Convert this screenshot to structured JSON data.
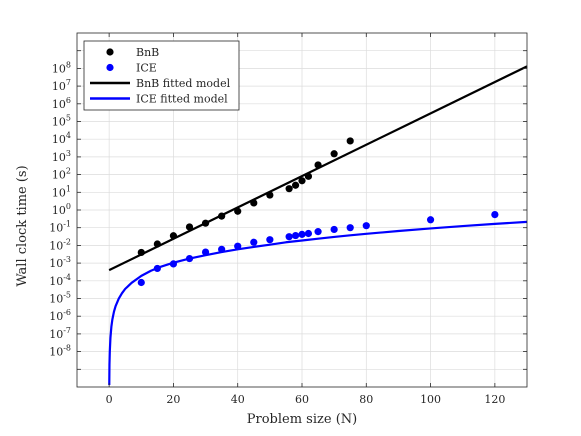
{
  "chart_data": {
    "type": "scatter",
    "title": "",
    "xlabel": "Problem size (N)",
    "ylabel": "Wall clock time (s)",
    "xscale": "linear",
    "yscale": "log",
    "xlim": [
      -10,
      130
    ],
    "ylim": [
      1e-10,
      10000000000.0
    ],
    "grid": true,
    "legend_position": "top-left",
    "x_tick_values": [
      0,
      20,
      40,
      60,
      80,
      100,
      120
    ],
    "x_tick_labels": [
      "0",
      "20",
      "40",
      "60",
      "80",
      "100",
      "120"
    ],
    "y_tick_labels": [
      {
        "base": "10",
        "exp": "8",
        "value": 100000000.0
      },
      {
        "base": "10",
        "exp": "7",
        "value": 10000000.0
      },
      {
        "base": "10",
        "exp": "6",
        "value": 1000000.0
      },
      {
        "base": "10",
        "exp": "5",
        "value": 100000.0
      },
      {
        "base": "10",
        "exp": "4",
        "value": 10000.0
      },
      {
        "base": "10",
        "exp": "3",
        "value": 1000.0
      },
      {
        "base": "10",
        "exp": "2",
        "value": 100.0
      },
      {
        "base": "10",
        "exp": "1",
        "value": 10.0
      },
      {
        "base": "10",
        "exp": "0",
        "value": 1.0
      },
      {
        "base": "10",
        "exp": "-1",
        "value": 0.1
      },
      {
        "base": "10",
        "exp": "-2",
        "value": 0.01
      },
      {
        "base": "10",
        "exp": "-3",
        "value": 0.001
      },
      {
        "base": "10",
        "exp": "-4",
        "value": 0.0001
      },
      {
        "base": "10",
        "exp": "-5",
        "value": 1e-05
      },
      {
        "base": "10",
        "exp": "-6",
        "value": 1e-06
      },
      {
        "base": "10",
        "exp": "-7",
        "value": 1e-07
      },
      {
        "base": "10",
        "exp": "-8",
        "value": 1e-08
      }
    ],
    "series": [
      {
        "name": "BnB",
        "kind": "scatter",
        "color": "#000000",
        "x": [
          10,
          15,
          20,
          25,
          30,
          35,
          40,
          45,
          50,
          56,
          58,
          60,
          62,
          65,
          70,
          75
        ],
        "y": [
          0.004,
          0.012,
          0.035,
          0.11,
          0.18,
          0.45,
          0.85,
          2.5,
          7,
          16,
          25,
          45,
          80,
          350,
          1500,
          8000
        ]
      },
      {
        "name": "ICE",
        "kind": "scatter",
        "color": "#0000ff",
        "x": [
          10,
          15,
          20,
          25,
          30,
          35,
          40,
          45,
          50,
          56,
          58,
          60,
          62,
          65,
          70,
          75,
          80,
          100,
          120
        ],
        "y": [
          8e-05,
          0.0005,
          0.0009,
          0.0018,
          0.0042,
          0.006,
          0.009,
          0.015,
          0.021,
          0.031,
          0.036,
          0.042,
          0.047,
          0.06,
          0.08,
          0.1,
          0.13,
          0.28,
          0.55
        ]
      },
      {
        "name": "BnB fitted model",
        "kind": "line",
        "color": "#000000",
        "x": [
          0,
          130
        ],
        "y": [
          0.0004,
          130000000.0
        ]
      },
      {
        "name": "ICE fitted model",
        "kind": "line",
        "color": "#0000ff",
        "x": [
          0.04,
          0.1,
          0.2,
          0.4,
          0.7,
          1,
          1.5,
          2,
          3,
          4,
          5,
          7,
          10,
          13,
          16,
          20,
          25,
          30,
          35,
          40,
          45,
          50,
          55,
          60,
          65,
          70,
          75,
          80,
          90,
          100,
          110,
          120,
          130
        ],
        "y": [
          1.3e-10,
          1.8e-09,
          1e-08,
          5.9e-08,
          2.6e-07,
          6.5e-07,
          1.8e-06,
          3.7e-06,
          9.9e-06,
          2e-05,
          3.5e-05,
          7.7e-05,
          0.00019,
          0.00037,
          0.00062,
          0.00105,
          0.0018,
          0.0028,
          0.0042,
          0.006,
          0.0082,
          0.011,
          0.015,
          0.019,
          0.024,
          0.03,
          0.037,
          0.045,
          0.065,
          0.091,
          0.124,
          0.164,
          0.213
        ]
      }
    ]
  }
}
